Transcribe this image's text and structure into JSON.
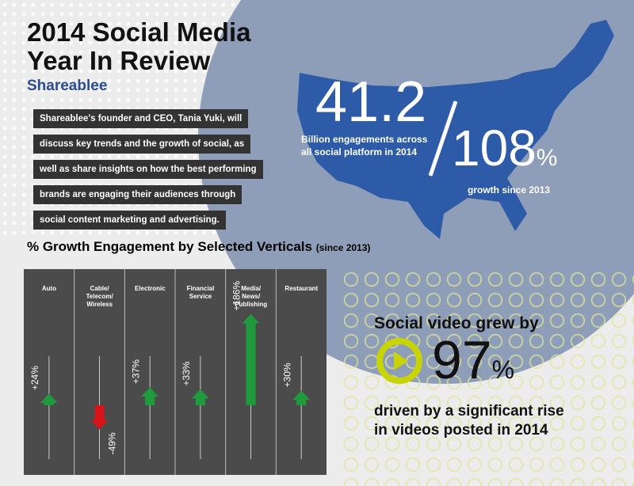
{
  "header": {
    "title_line1": "2014 Social Media",
    "title_line2": "Year In Review",
    "logo": "Shareablee"
  },
  "intro": {
    "lines": [
      "Shareablee's founder and CEO, Tania Yuki, will",
      "discuss key trends and the growth of social, as",
      "well as share insights on how the best performing",
      "brands are engaging their audiences through",
      "social content marketing and advertising."
    ]
  },
  "stats": {
    "engagements": {
      "number": "41.2",
      "text": "Billion engagements across\nall social platform in 2014"
    },
    "growth": {
      "number": "108",
      "unit": "%",
      "text": "growth since 2013"
    }
  },
  "video": {
    "lead": "Social video grew by",
    "number": "97",
    "unit": "%",
    "text": "driven by a significant rise\nin videos posted in 2014"
  },
  "chart_data": {
    "type": "bar",
    "title": "% Growth Engagement by Selected Verticals",
    "subtitle": "(since 2013)",
    "categories": [
      "Auto",
      "Cable/\nTelecom/\nWireless",
      "Electronic",
      "Financial\nService",
      "Media/\nNews/\nPublishing",
      "Restaurant"
    ],
    "values": [
      24,
      -49,
      37,
      33,
      186,
      30
    ],
    "value_labels": [
      "+24%",
      "-49%",
      "+37%",
      "+33%",
      "+186%",
      "+30%"
    ],
    "colors": {
      "up": "#1f9a3c",
      "down": "#d8141b"
    }
  }
}
